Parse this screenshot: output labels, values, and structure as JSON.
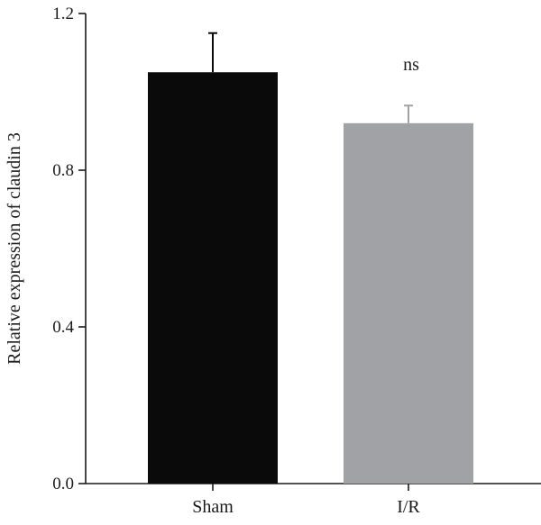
{
  "chart_data": {
    "type": "bar",
    "title": "",
    "xlabel": "",
    "ylabel": "Relative expression of claudin 3",
    "categories": [
      "Sham",
      "I/R"
    ],
    "values": [
      1.05,
      0.92
    ],
    "error": [
      0.1,
      0.045
    ],
    "colors": [
      "#0a0a0a",
      "#a0a2a5"
    ],
    "ylim": [
      0.0,
      1.2
    ],
    "yticks": [
      "0.0",
      "0.4",
      "0.8",
      "1.2"
    ],
    "grid": false,
    "annotations": [
      {
        "text": "ns",
        "category": "I/R"
      }
    ]
  }
}
